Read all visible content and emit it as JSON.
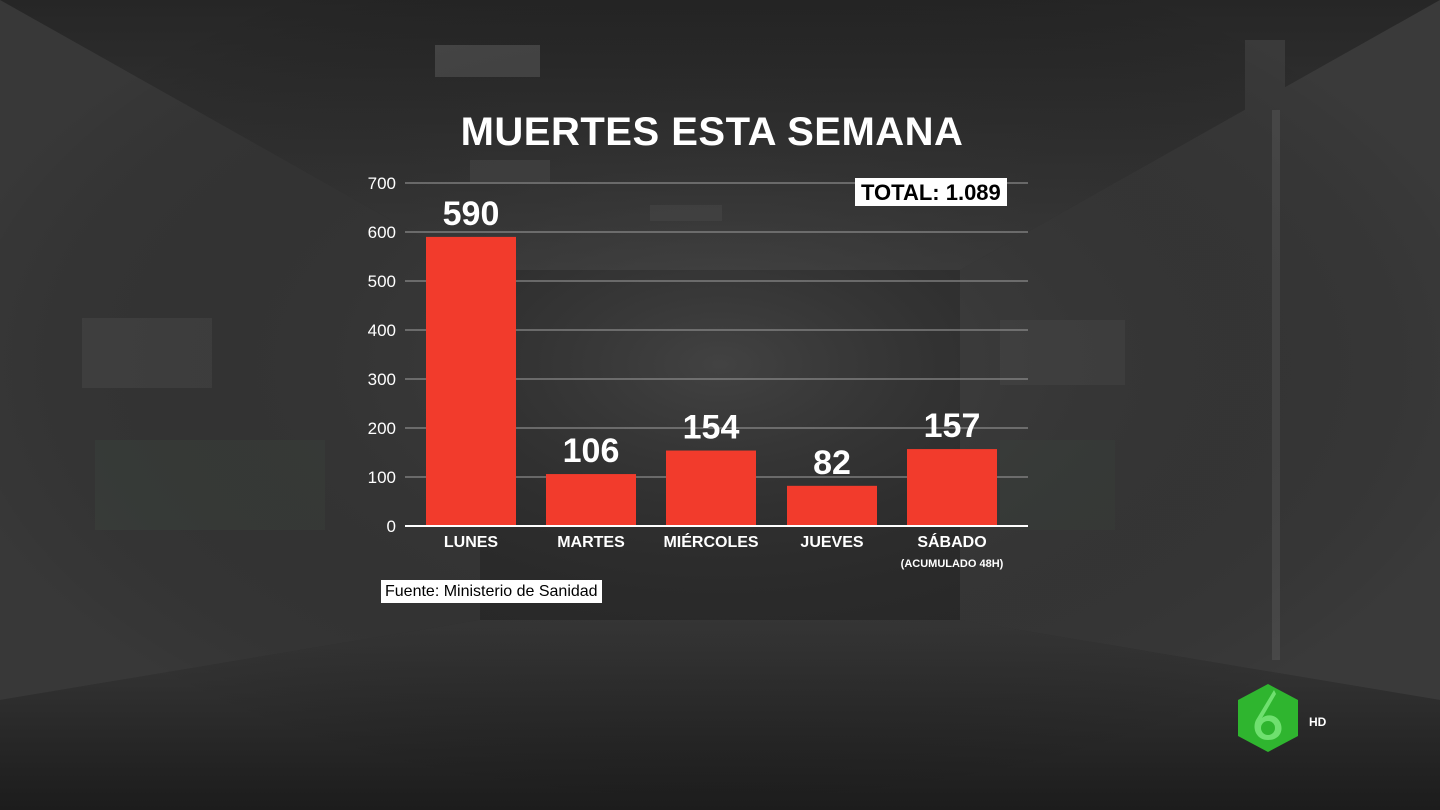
{
  "chart_data": {
    "type": "bar",
    "title": "MUERTES ESTA SEMANA",
    "categories": [
      "LUNES",
      "MARTES",
      "MIÉRCOLES",
      "JUEVES",
      "SÁBADO"
    ],
    "category_sublabels": [
      "",
      "",
      "",
      "",
      "(ACUMULADO 48H)"
    ],
    "values": [
      590,
      106,
      154,
      82,
      157
    ],
    "data_labels": [
      "590",
      "106",
      "154",
      "82",
      "157"
    ],
    "y_ticks": [
      0,
      100,
      200,
      300,
      400,
      500,
      600,
      700
    ],
    "ylim": [
      0,
      700
    ],
    "xlabel": "",
    "ylabel": "",
    "grid": true,
    "bar_color": "#f23b2c",
    "annotation": "TOTAL: 1.089"
  },
  "source": "Fuente: Ministerio de Sanidad",
  "logo": {
    "icon": "lasexta-6-logo",
    "hd_label": "HD",
    "color": "#3cc83c"
  }
}
